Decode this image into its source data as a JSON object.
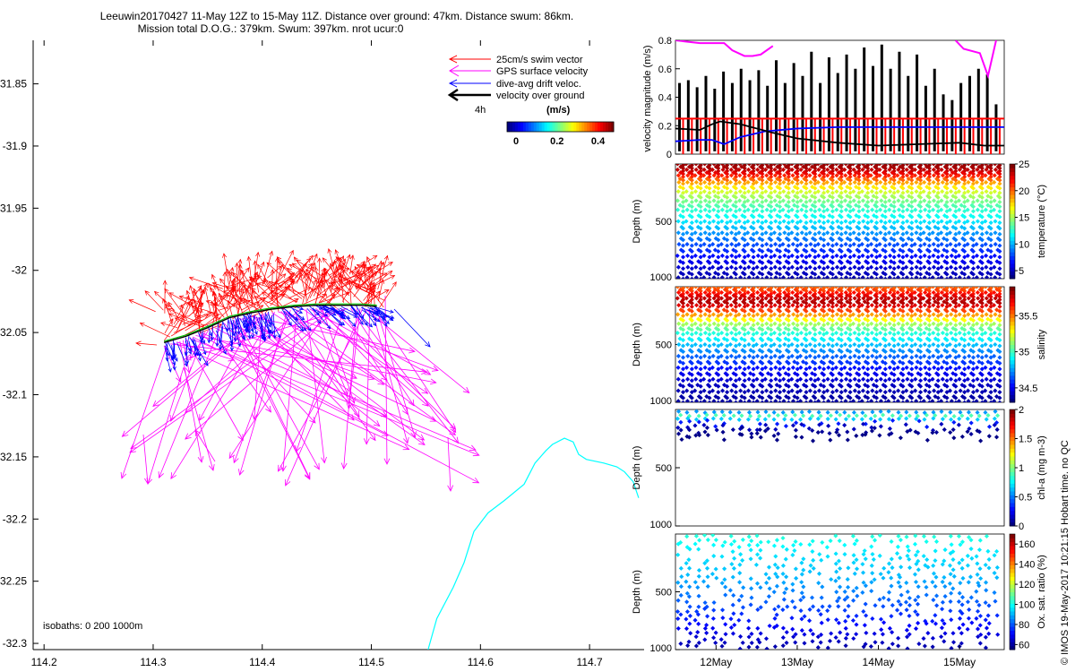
{
  "figure": {
    "title_line1": "Leeuwin20170427 11-May 12Z to 15-May 11Z. Distance over ground: 47km. Distance swum: 86km.",
    "title_line2": "Mission total D.O.G.: 379km. Swum: 397km. nrot ucur:0",
    "side_note": "© IMOS 19-May-2017 10:21:15 Hobart time. no QC",
    "colors": {
      "swim": "#ff0000",
      "gps": "#ff00ff",
      "drift": "#0000ff",
      "ground": "#000000",
      "isobath": "#00ffff"
    }
  },
  "chart_data": [
    {
      "id": "map",
      "type": "scatter",
      "title": "",
      "xlabel": "",
      "ylabel": "",
      "xlim": [
        114.19,
        114.75
      ],
      "ylim": [
        -32.305,
        -31.815
      ],
      "xticks": [
        114.2,
        114.3,
        114.4,
        114.5,
        114.6,
        114.7
      ],
      "xtick_labels": [
        "114.2",
        "114.3",
        "114.4",
        "114.5",
        "114.6",
        "114.7"
      ],
      "yticks": [
        -31.85,
        -31.9,
        -31.95,
        -32.0,
        -32.05,
        -32.1,
        -32.15,
        -32.2,
        -32.25,
        -32.3
      ],
      "ytick_labels": [
        "31.85",
        "-31.9",
        "31.95",
        "-32",
        "32.05",
        "-32.1",
        "32.15",
        "-32.2",
        "32.25",
        "-32.3"
      ],
      "legend": [
        {
          "name": "25cm/s swim vector",
          "color": "#ff0000"
        },
        {
          "name": "GPS surface velocity",
          "color": "#ff00ff"
        },
        {
          "name": "dive-avg drift veloc.",
          "color": "#0000ff"
        },
        {
          "name": "velocity over ground",
          "color": "#000000"
        }
      ],
      "legend_placement": "top-right",
      "legend_time_label": "4h",
      "colorbar": {
        "label": "(m/s)",
        "ticks": [
          "0",
          "0.2",
          "0.4"
        ],
        "range": [
          0,
          0.5
        ]
      },
      "isobath_note": "isobaths: 0   200  1000m",
      "isobath_line": [
        [
          114.552,
          -32.305
        ],
        [
          114.56,
          -32.28
        ],
        [
          114.575,
          -32.255
        ],
        [
          114.585,
          -32.235
        ],
        [
          114.594,
          -32.21
        ],
        [
          114.607,
          -32.195
        ],
        [
          114.622,
          -32.185
        ],
        [
          114.64,
          -32.172
        ],
        [
          114.65,
          -32.155
        ],
        [
          114.66,
          -32.145
        ],
        [
          114.666,
          -32.14
        ],
        [
          114.677,
          -32.135
        ],
        [
          114.685,
          -32.138
        ],
        [
          114.69,
          -32.148
        ],
        [
          114.697,
          -32.152
        ],
        [
          114.713,
          -32.155
        ],
        [
          114.725,
          -32.158
        ],
        [
          114.732,
          -32.162
        ],
        [
          114.74,
          -32.17
        ],
        [
          114.745,
          -32.183
        ]
      ],
      "ground_track": [
        [
          114.31,
          -32.057
        ],
        [
          114.33,
          -32.052
        ],
        [
          114.35,
          -32.045
        ],
        [
          114.37,
          -32.037
        ],
        [
          114.39,
          -32.033
        ],
        [
          114.41,
          -32.03
        ],
        [
          114.43,
          -32.028
        ],
        [
          114.45,
          -32.027
        ],
        [
          114.47,
          -32.027
        ],
        [
          114.49,
          -32.027
        ],
        [
          114.505,
          -32.028
        ]
      ],
      "blue_region": [
        [
          114.3,
          -32.06
        ],
        [
          114.55,
          -32.07
        ]
      ],
      "red_region": [
        [
          114.28,
          -32.0
        ],
        [
          114.56,
          -32.065
        ]
      ],
      "magenta_region": [
        [
          114.29,
          -32.04
        ],
        [
          114.58,
          -32.19
        ]
      ]
    },
    {
      "id": "velocity-panel",
      "type": "line",
      "title": "",
      "xlabel": "",
      "ylabel": "velocity magnitude (m/s)",
      "ylim": [
        0,
        0.8
      ],
      "yticks": [
        0,
        0.2,
        0.4,
        0.6,
        0.8
      ],
      "ytick_labels": [
        "0",
        "0.2",
        "0.4",
        "0.6",
        "0.8"
      ],
      "series": [
        {
          "name": "",
          "color": "#ff0000",
          "x": [
            11.5,
            15.55
          ],
          "values": [
            0.25,
            0.25
          ]
        },
        {
          "name": "",
          "color": "#0000ff",
          "x": [
            11.5,
            11.8,
            11.95,
            12.1,
            12.3,
            12.6,
            13.0,
            13.5,
            14.0,
            14.5,
            15.0,
            15.3,
            15.55
          ],
          "values": [
            0.09,
            0.1,
            0.1,
            0.07,
            0.12,
            0.16,
            0.18,
            0.19,
            0.19,
            0.19,
            0.19,
            0.19,
            0.19
          ]
        },
        {
          "name": "",
          "color": "#000000",
          "x": [
            11.5,
            11.8,
            11.95,
            12.05,
            12.3,
            12.7,
            13.0,
            13.5,
            14.0,
            14.5,
            15.0,
            15.3,
            15.55
          ],
          "values": [
            0.18,
            0.17,
            0.21,
            0.23,
            0.21,
            0.15,
            0.11,
            0.08,
            0.06,
            0.07,
            0.08,
            0.06,
            0.06
          ]
        }
      ],
      "dive_max_speeds": [
        0.5,
        0.52,
        0.47,
        0.55,
        0.46,
        0.58,
        0.5,
        0.6,
        0.52,
        0.59,
        0.48,
        0.66,
        0.5,
        0.64,
        0.55,
        0.72,
        0.5,
        0.68,
        0.57,
        0.7,
        0.6,
        0.75,
        0.62,
        0.77,
        0.6,
        0.72,
        0.55,
        0.7,
        0.48,
        0.6,
        0.42,
        0.38,
        0.5,
        0.55,
        0.6,
        0.56,
        0.35
      ],
      "magenta_gps": {
        "x": [
          11.5,
          11.8,
          12.1,
          12.2,
          12.35,
          12.45,
          12.55,
          12.7,
          14.95,
          15.05,
          15.25,
          15.35,
          15.45
        ],
        "values": [
          0.8,
          0.78,
          0.78,
          0.73,
          0.69,
          0.69,
          0.7,
          0.76,
          0.8,
          0.74,
          0.71,
          0.55,
          0.8
        ]
      }
    },
    {
      "id": "temperature-panel",
      "type": "scatter",
      "ylabel": "Depth (m)",
      "ylim": [
        1000,
        0
      ],
      "yticks": [
        500,
        1000
      ],
      "ytick_labels": [
        "500",
        "1000"
      ],
      "colorbar": {
        "label": "temperature (°C)",
        "range": [
          3.5,
          25
        ],
        "ticks": [
          "5",
          "10",
          "15",
          "20",
          "25"
        ]
      },
      "profile_count": 37,
      "profile_depths": [
        0,
        25,
        50,
        75,
        100,
        130,
        160,
        200,
        240,
        280,
        320,
        360,
        400,
        450,
        500,
        550,
        600,
        650,
        700,
        750,
        800,
        850,
        900,
        950,
        990
      ],
      "profile_values": [
        24.5,
        24.2,
        23.6,
        22.8,
        21.6,
        20.2,
        18.8,
        17.3,
        16.0,
        15.0,
        14.0,
        13.2,
        12.5,
        11.8,
        11.0,
        10.2,
        9.3,
        8.6,
        7.8,
        7.1,
        6.4,
        5.8,
        5.2,
        4.8,
        4.4
      ]
    },
    {
      "id": "salinity-panel",
      "type": "scatter",
      "ylabel": "Depth (m)",
      "ylim": [
        1000,
        0
      ],
      "yticks": [
        500,
        1000
      ],
      "ytick_labels": [
        "500",
        "1000"
      ],
      "colorbar": {
        "label": "salinity",
        "range": [
          34.3,
          35.9
        ],
        "ticks": [
          "34.5",
          "35",
          "35.5"
        ]
      },
      "profile_count": 37,
      "profile_depths": [
        0,
        25,
        50,
        75,
        100,
        130,
        160,
        200,
        240,
        280,
        320,
        360,
        400,
        450,
        500,
        550,
        600,
        650,
        700,
        750,
        800,
        850,
        900,
        950,
        990
      ],
      "profile_values": [
        35.55,
        35.6,
        35.68,
        35.75,
        35.8,
        35.82,
        35.75,
        35.6,
        35.45,
        35.3,
        35.15,
        35.05,
        34.95,
        34.88,
        34.8,
        34.72,
        34.65,
        34.58,
        34.52,
        34.47,
        34.43,
        34.4,
        34.38,
        34.36,
        34.35
      ]
    },
    {
      "id": "chla-panel",
      "type": "scatter",
      "ylabel": "Depth (m)",
      "ylim": [
        1000,
        0
      ],
      "yticks": [
        500,
        1000
      ],
      "ytick_labels": [
        "500",
        "1000"
      ],
      "colorbar": {
        "label": "chl-a (mg m-3)",
        "range": [
          0,
          2
        ],
        "ticks": [
          "0",
          "0.5",
          "1",
          "1.5",
          "2"
        ]
      },
      "profile_count": 37,
      "profile_depths": [
        20,
        50,
        80,
        110,
        140,
        170,
        200,
        230
      ],
      "profile_values": [
        0.55,
        0.9,
        0.65,
        0.3,
        0.12,
        0.05,
        0.02,
        0.01
      ]
    },
    {
      "id": "oxygen-panel",
      "type": "scatter",
      "ylabel": "Depth (m)",
      "ylim": [
        1000,
        0
      ],
      "yticks": [
        500,
        1000
      ],
      "ytick_labels": [
        "500",
        "1000"
      ],
      "xticks": [
        12,
        13,
        14,
        15
      ],
      "xtick_labels": [
        "12May",
        "13May",
        "14May",
        "15May"
      ],
      "xlim": [
        11.5,
        15.55
      ],
      "colorbar": {
        "label": "Ox. sat. ratio (%)",
        "range": [
          55,
          170
        ],
        "ticks": [
          "60",
          "80",
          "100",
          "120",
          "140",
          "160"
        ]
      },
      "profile_count": 37,
      "profile_depths": [
        20,
        60,
        100,
        140,
        180,
        220,
        260,
        300,
        340,
        380,
        420,
        460,
        500,
        540,
        580,
        620,
        660,
        700,
        740,
        780,
        820,
        860,
        900,
        940,
        980
      ],
      "profile_values": [
        102,
        100,
        98,
        96,
        95,
        94,
        93,
        92,
        91,
        90,
        88,
        86,
        84,
        82,
        80,
        78,
        76,
        74,
        72,
        70,
        68,
        66,
        64,
        62,
        60
      ]
    }
  ]
}
